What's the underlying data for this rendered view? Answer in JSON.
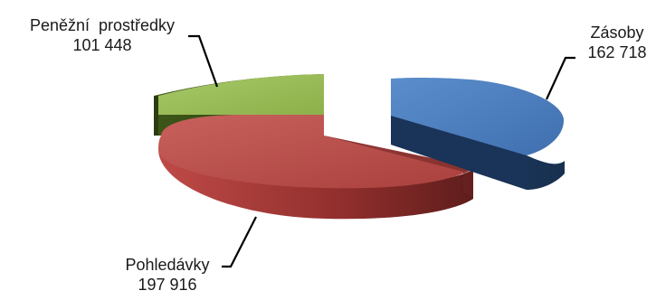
{
  "chart_data": {
    "type": "pie",
    "title": "",
    "style": "3d-exploded",
    "slices": [
      {
        "label": "Zásoby",
        "value_text": "162 718",
        "value": 162718,
        "color": "#4f7fbd"
      },
      {
        "label": "Pohledávky",
        "value_text": "197 916",
        "value": 197916,
        "color": "#bf4f4d"
      },
      {
        "label": "Peněžní  prostředky",
        "value_text": "101 448",
        "value": 101448,
        "color": "#9bbb59"
      }
    ]
  }
}
